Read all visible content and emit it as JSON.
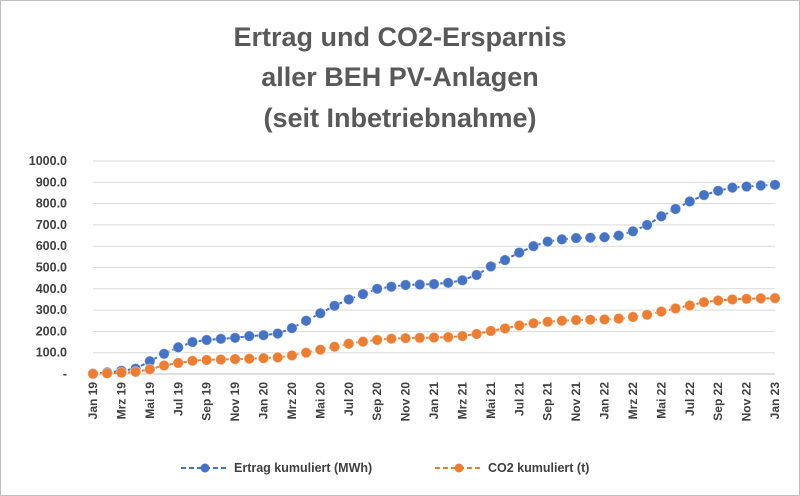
{
  "chart_data": {
    "type": "line",
    "title_lines": [
      "Ertrag und CO2-Ersparnis",
      "aller BEH PV-Anlagen",
      "(seit Inbetriebnahme)"
    ],
    "y_tick_labels": [
      "-",
      "100.0",
      "200.0",
      "300.0",
      "400.0",
      "500.0",
      "600.0",
      "700.0",
      "800.0",
      "900.0",
      "1000.0"
    ],
    "ylim": [
      0,
      1000
    ],
    "grid": true,
    "legend_position": "bottom",
    "x_tick_labels": [
      "Jan 19",
      "Mrz 19",
      "Mai 19",
      "Jul 19",
      "Sep 19",
      "Nov 19",
      "Jan 20",
      "Mrz 20",
      "Mai 20",
      "Jul 20",
      "Sep 20",
      "Nov 20",
      "Jan 21",
      "Mrz 21",
      "Mai 21",
      "Jul 21",
      "Sep 21",
      "Nov 21",
      "Jan 22",
      "Mrz 22",
      "Mai 22",
      "Jul 22",
      "Sep 22",
      "Nov 22",
      "Jan 23"
    ],
    "x": [
      "Jan 19",
      "Feb 19",
      "Mrz 19",
      "Apr 19",
      "Mai 19",
      "Jun 19",
      "Jul 19",
      "Aug 19",
      "Sep 19",
      "Okt 19",
      "Nov 19",
      "Dez 19",
      "Jan 20",
      "Feb 20",
      "Mrz 20",
      "Apr 20",
      "Mai 20",
      "Jun 20",
      "Jul 20",
      "Aug 20",
      "Sep 20",
      "Okt 20",
      "Nov 20",
      "Dez 20",
      "Jan 21",
      "Feb 21",
      "Mrz 21",
      "Apr 21",
      "Mai 21",
      "Jun 21",
      "Jul 21",
      "Aug 21",
      "Sep 21",
      "Okt 21",
      "Nov 21",
      "Dez 21",
      "Jan 22",
      "Feb 22",
      "Mrz 22",
      "Apr 22",
      "Mai 22",
      "Jun 22",
      "Jul 22",
      "Aug 22",
      "Sep 22",
      "Okt 22",
      "Nov 22",
      "Dez 22",
      "Jan 23"
    ],
    "series": [
      {
        "name": "Ertrag kumuliert (MWh)",
        "color": "#4472c4",
        "values": [
          2,
          8,
          15,
          25,
          60,
          95,
          125,
          150,
          160,
          165,
          170,
          178,
          182,
          190,
          215,
          250,
          285,
          320,
          350,
          375,
          400,
          410,
          418,
          420,
          422,
          428,
          440,
          465,
          505,
          535,
          570,
          600,
          622,
          632,
          638,
          640,
          642,
          650,
          670,
          700,
          740,
          775,
          810,
          840,
          860,
          875,
          880,
          885,
          888
        ]
      },
      {
        "name": "CO2 kumuliert (t)",
        "color": "#ed7d31",
        "values": [
          1,
          3,
          6,
          10,
          22,
          40,
          52,
          62,
          66,
          68,
          70,
          72,
          74,
          78,
          87,
          100,
          114,
          128,
          142,
          152,
          160,
          166,
          168,
          170,
          171,
          173,
          178,
          188,
          202,
          214,
          228,
          238,
          245,
          250,
          253,
          255,
          256,
          260,
          268,
          278,
          293,
          308,
          322,
          337,
          345,
          350,
          353,
          355,
          356
        ]
      }
    ]
  }
}
